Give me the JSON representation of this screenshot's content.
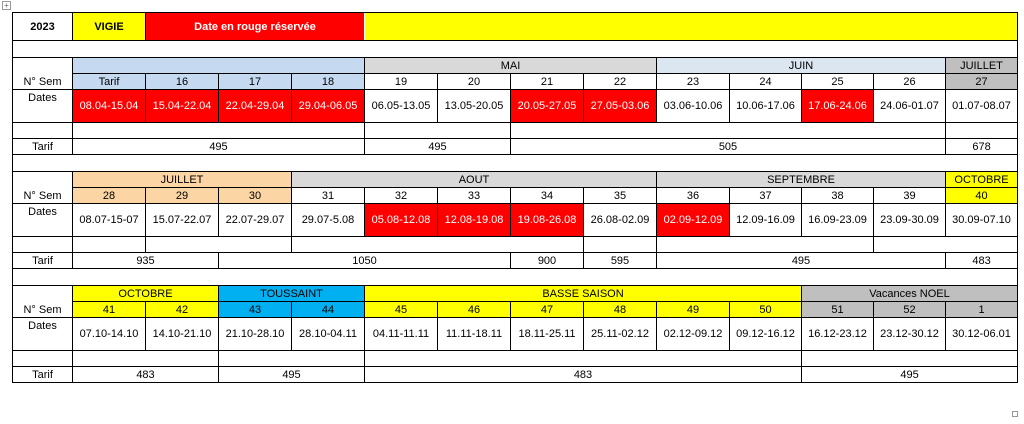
{
  "header": {
    "year": "2023",
    "title": "VIGIE",
    "note": "Date en rouge réservée"
  },
  "labels": {
    "sem": "N° Sem",
    "dates": "Dates",
    "tarif": "Tarif"
  },
  "block1": {
    "months": [
      "",
      "MAI",
      "JUIN",
      "JUILLET"
    ],
    "weeks": [
      "Tarif",
      "16",
      "17",
      "18",
      "19",
      "20",
      "21",
      "22",
      "23",
      "24",
      "25",
      "26",
      "27"
    ],
    "dates": [
      "08.04-15.04",
      "15.04-22.04",
      "22.04-29.04",
      "29.04-06.05",
      "06.05-13.05",
      "13.05-20.05",
      "20.05-27.05",
      "27.05-03.06",
      "03.06-10.06",
      "10.06-17.06",
      "17.06-24.06",
      "24.06-01.07",
      "01.07-08.07"
    ],
    "tarifs": [
      "495",
      "495",
      "505",
      "678"
    ]
  },
  "block2": {
    "months": [
      "JUILLET",
      "AOUT",
      "SEPTEMBRE",
      "OCTOBRE"
    ],
    "weeks": [
      "28",
      "29",
      "30",
      "31",
      "32",
      "33",
      "34",
      "35",
      "36",
      "37",
      "38",
      "39",
      "40"
    ],
    "dates": [
      "08.07-15-07",
      "15.07-22.07",
      "22.07-29.07",
      "29.07-5.08",
      "05.08-12.08",
      "12.08-19.08",
      "19.08-26.08",
      "26.08-02.09",
      "02.09-12.09",
      "12.09-16.09",
      "16.09-23.09",
      "23.09-30.09",
      "30.09-07.10"
    ],
    "tarifs": [
      "935",
      "1050",
      "900",
      "595",
      "495",
      "483"
    ]
  },
  "block3": {
    "months": [
      "OCTOBRE",
      "TOUSSAINT",
      "BASSE SAISON",
      "Vacances NOEL"
    ],
    "weeks": [
      "41",
      "42",
      "43",
      "44",
      "45",
      "46",
      "47",
      "48",
      "49",
      "50",
      "51",
      "52",
      "1"
    ],
    "dates": [
      "07.10-14.10",
      "14.10-21.10",
      "21.10-28.10",
      "28.10-04.11",
      "04.11-11.11",
      "11.11-18.11",
      "18.11-25.11",
      "25.11-02.12",
      "02.12-09.12",
      "09.12-16.12",
      "16.12-23.12",
      "23.12-30.12",
      "30.12-06.01"
    ],
    "tarifs": [
      "483",
      "495",
      "483",
      "495"
    ]
  },
  "colors": {
    "reserved": "#ff0000",
    "yellow": "#ffff00",
    "blue": "#c5d9f1",
    "grey": "#d9d9d9",
    "orange": "#fcd5a4",
    "cyan": "#00b0f0"
  }
}
